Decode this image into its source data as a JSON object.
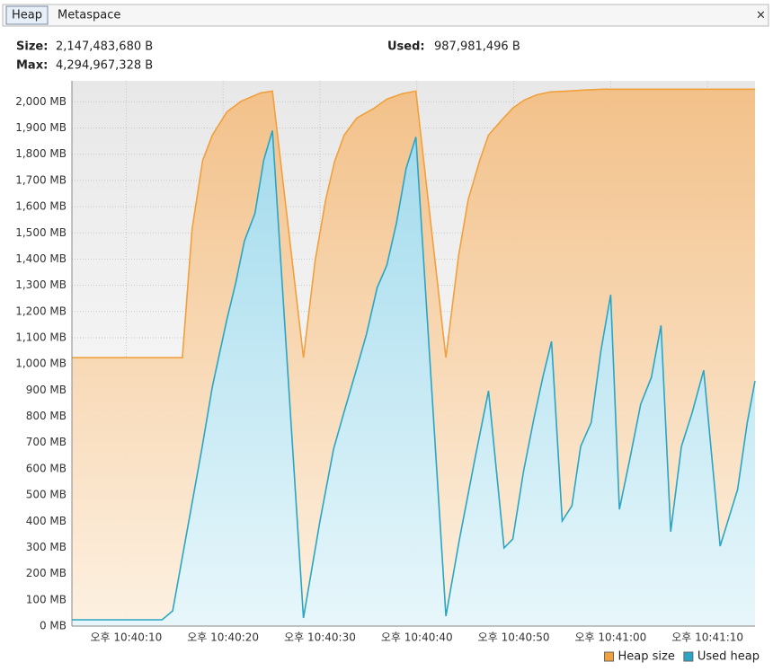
{
  "tabs": [
    "Heap",
    "Metaspace"
  ],
  "close": "×",
  "info": {
    "size_label": "Size:",
    "size_value": "2,147,483,680 B",
    "used_label": "Used:",
    "used_value": "987,981,496 B",
    "max_label": "Max:",
    "max_value": "4,294,967,328 B"
  },
  "chart_data": {
    "type": "area",
    "xlim": [
      4.4,
      74.9
    ],
    "xticks": [
      {
        "value": 10,
        "label": "오후 10:40:10"
      },
      {
        "value": 20,
        "label": "오후 10:40:20"
      },
      {
        "value": 30,
        "label": "오후 10:40:30"
      },
      {
        "value": 40,
        "label": "오후 10:40:40"
      },
      {
        "value": 50,
        "label": "오후 10:40:50"
      },
      {
        "value": 60,
        "label": "오후 10:41:00"
      },
      {
        "value": 70,
        "label": "오후 10:41:10"
      }
    ],
    "ylim": [
      0,
      2080
    ],
    "yticks": [
      {
        "value": 0,
        "label": "0 MB"
      },
      {
        "value": 100,
        "label": "100 MB"
      },
      {
        "value": 200,
        "label": "200 MB"
      },
      {
        "value": 300,
        "label": "300 MB"
      },
      {
        "value": 400,
        "label": "400 MB"
      },
      {
        "value": 500,
        "label": "500 MB"
      },
      {
        "value": 600,
        "label": "600 MB"
      },
      {
        "value": 700,
        "label": "700 MB"
      },
      {
        "value": 800,
        "label": "800 MB"
      },
      {
        "value": 900,
        "label": "900 MB"
      },
      {
        "value": 1000,
        "label": "1,000 MB"
      },
      {
        "value": 1100,
        "label": "1,100 MB"
      },
      {
        "value": 1200,
        "label": "1,200 MB"
      },
      {
        "value": 1300,
        "label": "1,300 MB"
      },
      {
        "value": 1400,
        "label": "1,400 MB"
      },
      {
        "value": 1500,
        "label": "1,500 MB"
      },
      {
        "value": 1600,
        "label": "1,600 MB"
      },
      {
        "value": 1700,
        "label": "1,700 MB"
      },
      {
        "value": 1800,
        "label": "1,800 MB"
      },
      {
        "value": 1900,
        "label": "1,900 MB"
      },
      {
        "value": 2000,
        "label": "2,000 MB"
      }
    ],
    "grid": true,
    "legend": "bottom-right",
    "series": [
      {
        "name": "Heap size",
        "color": "#f0a03c",
        "fill": "#f5c28a",
        "x": [
          4.4,
          15.8,
          16.8,
          17.9,
          18.9,
          20.4,
          21.9,
          23.9,
          25.1,
          28.3,
          29.5,
          30.6,
          31.5,
          32.5,
          33.8,
          35.6,
          36.9,
          38.5,
          39.9,
          43.0,
          44.3,
          45.3,
          46.5,
          47.4,
          48.8,
          49.9,
          51.1,
          52.4,
          53.8,
          55.5,
          57.3,
          59.2,
          74.9
        ],
        "values": [
          1024,
          1024,
          1514,
          1777,
          1873,
          1962,
          2003,
          2034,
          2041,
          1024,
          1394,
          1627,
          1771,
          1873,
          1938,
          1976,
          2010,
          2031,
          2041,
          1024,
          1411,
          1627,
          1777,
          1873,
          1932,
          1976,
          2007,
          2027,
          2038,
          2041,
          2045,
          2048,
          2048
        ]
      },
      {
        "name": "Used heap",
        "color": "#2aa5c5",
        "fill": "#b4e6f5",
        "x": [
          4.4,
          13.7,
          14.8,
          17.8,
          18.9,
          20.4,
          21.3,
          22.2,
          23.3,
          24.2,
          25.1,
          28.3,
          30.0,
          31.4,
          32.5,
          33.8,
          34.8,
          35.9,
          36.9,
          37.9,
          38.9,
          39.9,
          43.0,
          44.4,
          46.0,
          47.4,
          49.0,
          49.9,
          51.0,
          52.1,
          53.0,
          53.9,
          55.0,
          56.0,
          56.9,
          58.0,
          59.0,
          60.0,
          60.9,
          62.0,
          63.1,
          64.2,
          65.2,
          66.2,
          67.3,
          68.4,
          69.6,
          71.3,
          73.1,
          74.1,
          74.9
        ],
        "values": [
          24,
          24,
          58,
          675,
          914,
          1171,
          1308,
          1469,
          1575,
          1777,
          1890,
          31,
          401,
          675,
          818,
          983,
          1113,
          1291,
          1377,
          1538,
          1747,
          1866,
          38,
          332,
          640,
          897,
          298,
          332,
          589,
          795,
          949,
          1086,
          401,
          459,
          685,
          777,
          1051,
          1264,
          445,
          640,
          846,
          949,
          1147,
          360,
          685,
          812,
          976,
          305,
          521,
          777,
          935
        ]
      }
    ]
  }
}
